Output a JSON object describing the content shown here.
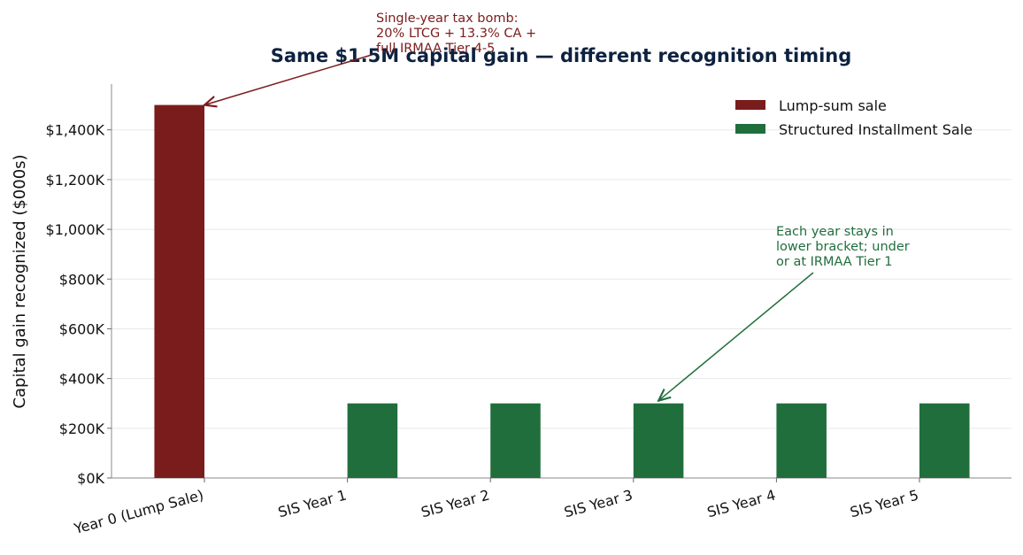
{
  "chart_data": {
    "type": "bar",
    "title": "Same $1.5M capital gain — different recognition timing",
    "y_label": "Capital gain recognized ($000s)",
    "categories": [
      "Year 0 (Lump Sale)",
      "SIS Year 1",
      "SIS Year 2",
      "SIS Year 3",
      "SIS Year 4",
      "SIS Year 5"
    ],
    "series": [
      {
        "name": "Lump-sum sale",
        "color": "#7b1c1c",
        "values": [
          1500,
          null,
          null,
          null,
          null,
          null
        ]
      },
      {
        "name": "Structured Installment Sale",
        "color": "#216e3d",
        "values": [
          null,
          300,
          300,
          300,
          300,
          300
        ]
      }
    ],
    "ylim": [
      0,
      1584
    ],
    "yticks": [
      {
        "value": 0,
        "label": "$0K"
      },
      {
        "value": 200,
        "label": "$200K"
      },
      {
        "value": 400,
        "label": "$400K"
      },
      {
        "value": 600,
        "label": "$600K"
      },
      {
        "value": 800,
        "label": "$800K"
      },
      {
        "value": 1000,
        "label": "$1,000K"
      },
      {
        "value": 1200,
        "label": "$1,200K"
      },
      {
        "value": 1400,
        "label": "$1,400K"
      }
    ],
    "grid": true,
    "legend": "upper right",
    "annotations": [
      {
        "lines": [
          "Single-year tax bomb:",
          "20% LTCG + 13.3% CA +",
          "full IRMAA Tier 4-5"
        ],
        "color": "#7b1c1c"
      },
      {
        "lines": [
          "Each year stays in",
          "lower bracket; under",
          "or at IRMAA Tier 1"
        ],
        "color": "#216e3d"
      }
    ]
  }
}
